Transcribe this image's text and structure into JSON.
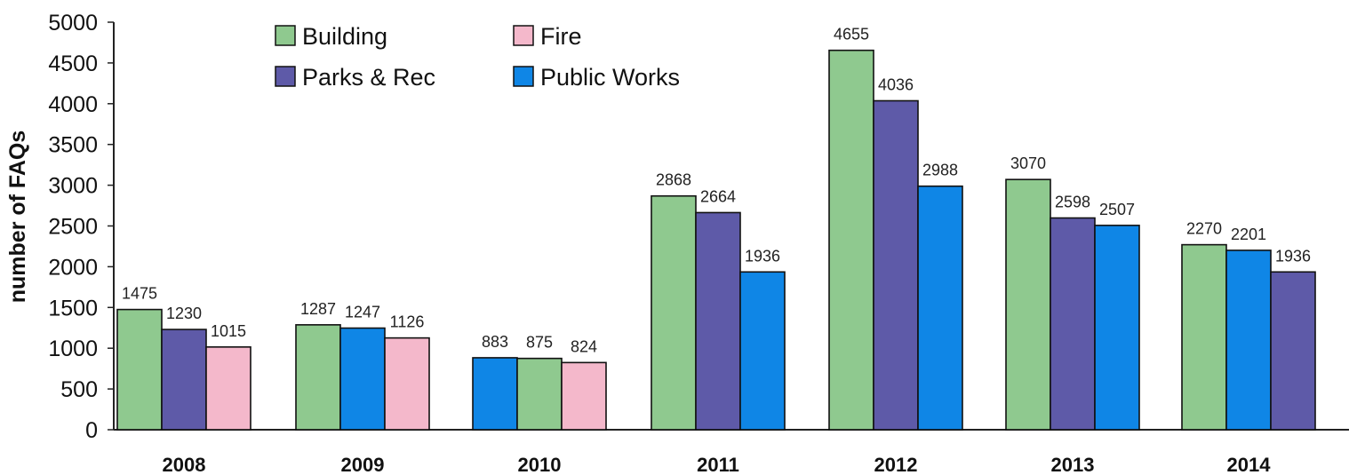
{
  "chart_data": {
    "type": "bar",
    "ylabel": "number of FAQs",
    "xlabel": "",
    "ylim": [
      0,
      5000
    ],
    "yticks": [
      0,
      500,
      1000,
      1500,
      2000,
      2500,
      3000,
      3500,
      4000,
      4500,
      5000
    ],
    "grid": false,
    "legend_position": "top",
    "legend": [
      {
        "name": "Building",
        "color": "#8fc98f"
      },
      {
        "name": "Fire",
        "color": "#f4b8cb"
      },
      {
        "name": "Parks & Rec",
        "color": "#5e5aa8"
      },
      {
        "name": "Public Works",
        "color": "#0f86e6"
      }
    ],
    "categories": [
      "2008",
      "2009",
      "2010",
      "2011",
      "2012",
      "2013",
      "2014"
    ],
    "groups": [
      {
        "year": "2008",
        "bars": [
          {
            "series": "Building",
            "value": 1475,
            "label": "1475"
          },
          {
            "series": "Parks & Rec",
            "value": 1230,
            "label": "1230"
          },
          {
            "series": "Fire",
            "value": 1015,
            "label": "1015"
          }
        ]
      },
      {
        "year": "2009",
        "bars": [
          {
            "series": "Building",
            "value": 1287,
            "label": "1287"
          },
          {
            "series": "Public Works",
            "value": 1247,
            "label": "1247"
          },
          {
            "series": "Fire",
            "value": 1126,
            "label": "1126"
          }
        ]
      },
      {
        "year": "2010",
        "bars": [
          {
            "series": "Public Works",
            "value": 883,
            "label": "883"
          },
          {
            "series": "Building",
            "value": 875,
            "label": "875"
          },
          {
            "series": "Fire",
            "value": 824,
            "label": "824"
          }
        ]
      },
      {
        "year": "2011",
        "bars": [
          {
            "series": "Building",
            "value": 2868,
            "label": "2868"
          },
          {
            "series": "Parks & Rec",
            "value": 2664,
            "label": "2664"
          },
          {
            "series": "Public Works",
            "value": 1936,
            "label": "1936"
          }
        ]
      },
      {
        "year": "2012",
        "bars": [
          {
            "series": "Building",
            "value": 4655,
            "label": "4655"
          },
          {
            "series": "Parks & Rec",
            "value": 4036,
            "label": "4036"
          },
          {
            "series": "Public Works",
            "value": 2988,
            "label": "2988"
          }
        ]
      },
      {
        "year": "2013",
        "bars": [
          {
            "series": "Building",
            "value": 3070,
            "label": "3070"
          },
          {
            "series": "Parks & Rec",
            "value": 2598,
            "label": "2598"
          },
          {
            "series": "Public Works",
            "value": 2507,
            "label": "2507"
          }
        ]
      },
      {
        "year": "2014",
        "bars": [
          {
            "series": "Building",
            "value": 2270,
            "label": "2270"
          },
          {
            "series": "Public Works",
            "value": 2201,
            "label": "2201"
          },
          {
            "series": "Parks & Rec",
            "value": 1936,
            "label": "1936"
          }
        ]
      }
    ]
  }
}
